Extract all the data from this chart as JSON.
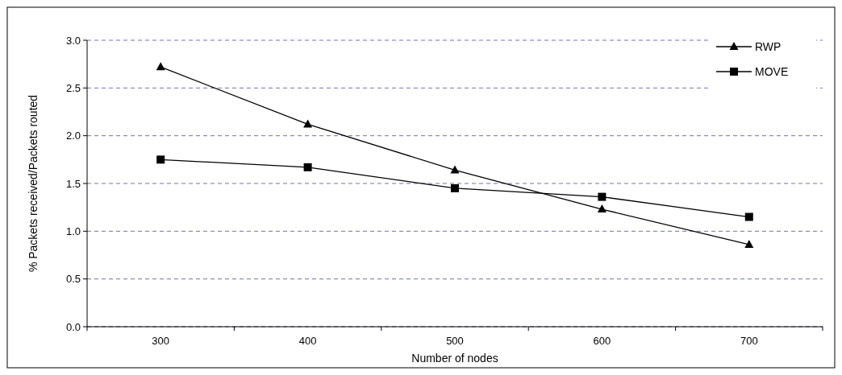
{
  "chart_data": {
    "type": "line",
    "xlabel": "Number of nodes",
    "ylabel": "% Packets received/Packets routed",
    "categories": [
      "300",
      "400",
      "500",
      "600",
      "700"
    ],
    "series": [
      {
        "name": "RWP",
        "color": "#000000",
        "marker": "triangle",
        "values": [
          2.72,
          2.12,
          1.64,
          1.23,
          0.86
        ]
      },
      {
        "name": "MOVE",
        "color": "#000000",
        "marker": "square",
        "values": [
          1.75,
          1.67,
          1.45,
          1.36,
          1.15
        ]
      }
    ],
    "ylim": [
      0,
      3
    ],
    "yticks": [
      {
        "value": 0,
        "label": "0.0"
      },
      {
        "value": 0.5,
        "label": "0.5"
      },
      {
        "value": 1,
        "label": "1.0"
      },
      {
        "value": 1.5,
        "label": "1.5"
      },
      {
        "value": 2,
        "label": "2.0"
      },
      {
        "value": 2.5,
        "label": "2.5"
      },
      {
        "value": 3,
        "label": "3.0"
      }
    ],
    "grid": "y",
    "legend": "top right",
    "line_style": "solid"
  }
}
